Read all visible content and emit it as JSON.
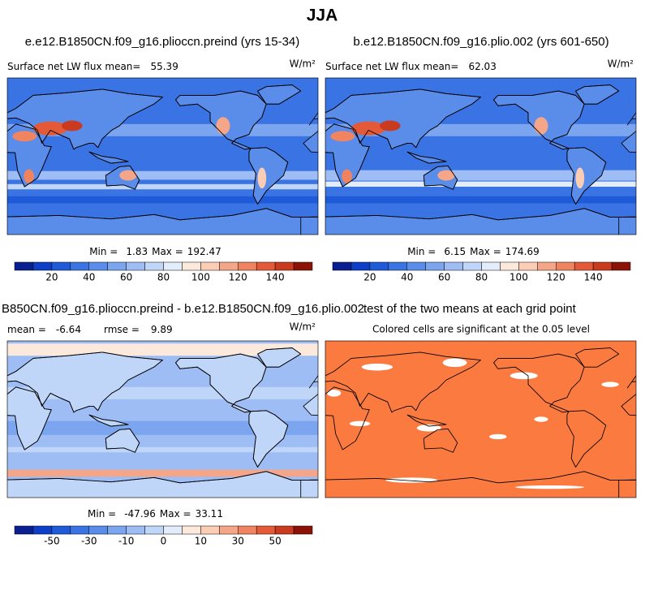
{
  "title": "JJA",
  "panels": [
    {
      "title": "e.e12.B1850CN.f09_g16.plioccn.preind (yrs 15-34)",
      "label": "Surface net LW flux mean=",
      "mean": 55.39,
      "units": "W/m²",
      "min_label": "Min =",
      "min": 1.83,
      "max_label": "Max =",
      "max": 192.47
    },
    {
      "title": "b.e12.B1850CN.f09_g16.plio.002 (yrs 601-650)",
      "label": "Surface net LW flux mean=",
      "mean": 62.03,
      "units": "W/m²",
      "min_label": "Min =",
      "min": 6.15,
      "max_label": "Max =",
      "max": 174.69
    },
    {
      "title": "B850CN.f09_g16.plioccn.preind - b.e12.B1850CN.f09_g16.plio.002",
      "label": "mean =",
      "mean": -6.64,
      "rmse_label": "rmse =",
      "rmse": 9.89,
      "units": "W/m²",
      "min_label": "Min =",
      "min": -47.96,
      "max_label": "Max =",
      "max": 33.11
    },
    {
      "title": "test of the two means at each grid point",
      "label": "Colored cells are significant at the 0.05 level"
    }
  ],
  "colorbars": [
    {
      "colors": [
        "#0a1f8f",
        "#0d3ec8",
        "#1f5ad9",
        "#3a73e3",
        "#5a8ce9",
        "#7ba5ef",
        "#9dbdf4",
        "#c0d6f8",
        "#e2ecfb",
        "#fde8dc",
        "#fbcdb5",
        "#f6a688",
        "#f08360",
        "#e45a38",
        "#c93a1e",
        "#8c1208"
      ],
      "ticks": [
        20,
        40,
        60,
        80,
        100,
        120,
        140
      ]
    },
    {
      "colors": [
        "#0a1f8f",
        "#0d3ec8",
        "#1f5ad9",
        "#3a73e3",
        "#5a8ce9",
        "#7ba5ef",
        "#9dbdf4",
        "#c0d6f8",
        "#e2ecfb",
        "#fde8dc",
        "#fbcdb5",
        "#f6a688",
        "#f08360",
        "#e45a38",
        "#c93a1e",
        "#8c1208"
      ],
      "ticks": [
        -50,
        -30,
        -10,
        0,
        10,
        30,
        50
      ]
    },
    {
      "colors": [
        "#0a1f8f",
        "#0d3ec8",
        "#1f5ad9",
        "#3a73e3",
        "#5a8ce9",
        "#7ba5ef",
        "#9dbdf4",
        "#c0d6f8",
        "#e2ecfb",
        "#fde8dc",
        "#fbcdb5",
        "#f6a688",
        "#f08360",
        "#e45a38",
        "#c93a1e",
        "#8c1208"
      ],
      "ticks": [
        20,
        40,
        60,
        80,
        100,
        120,
        140
      ]
    }
  ]
}
